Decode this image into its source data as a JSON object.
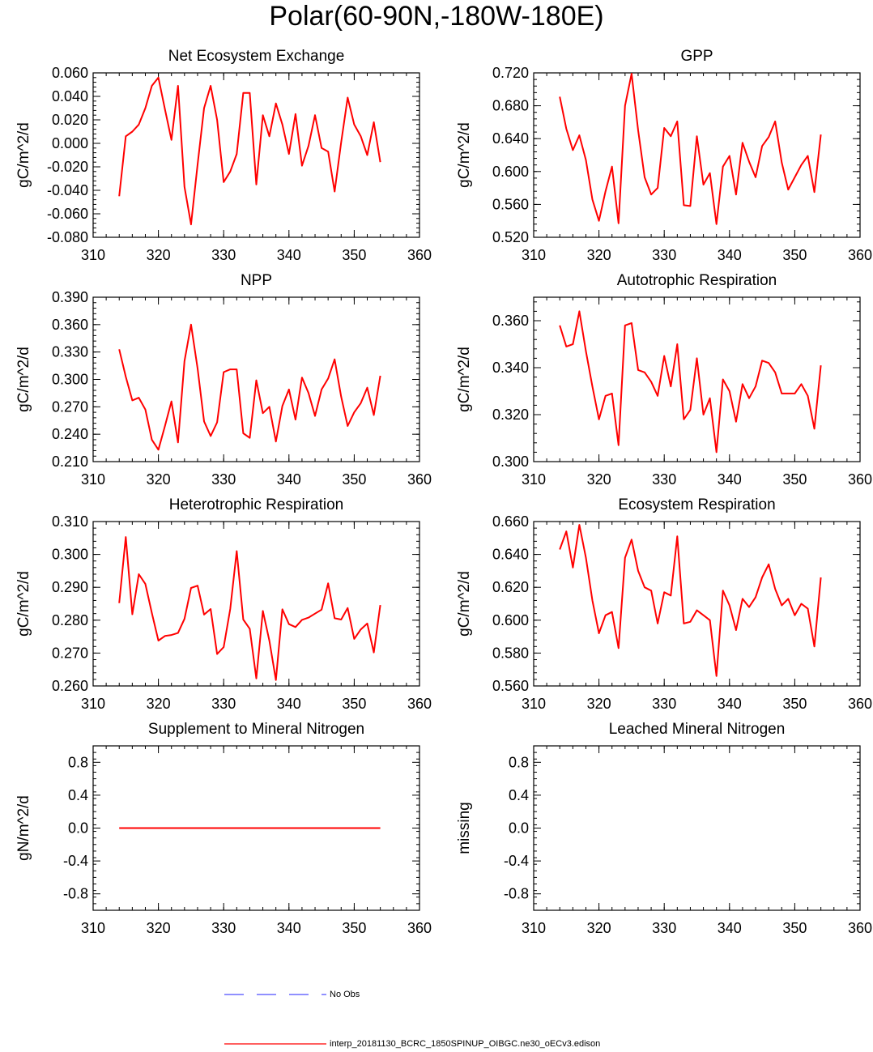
{
  "page_title": "Polar(60-90N,-180W-180E)",
  "colors": {
    "model_line": "#ff0000",
    "obs_line": "#4d4dff",
    "axis": "#000000"
  },
  "legend": {
    "obs_label": "No Obs",
    "model_label": "interp_20181130_BCRC_1850SPINUP_OIBGC.ne30_oECv3.edison"
  },
  "chart_data": [
    {
      "type": "line",
      "title": "Net Ecosystem Exchange",
      "ylabel": "gC/m^2/d",
      "xlim": [
        310,
        360
      ],
      "ylim": [
        -0.08,
        0.06
      ],
      "xticks": [
        310,
        320,
        330,
        340,
        350,
        360
      ],
      "yticks": [
        -0.08,
        -0.06,
        -0.04,
        -0.02,
        0.0,
        0.02,
        0.04,
        0.06
      ],
      "ytick_labels": [
        "-0.080",
        "-0.060",
        "-0.040",
        "-0.020",
        "0.000",
        "0.020",
        "0.040",
        "0.060"
      ],
      "series": [
        {
          "name": "interp_20181130_BCRC_1850SPINUP_OIBGC.ne30_oECv3.edison",
          "x": [
            314,
            315,
            316,
            317,
            318,
            319,
            320,
            321,
            322,
            323,
            324,
            325,
            326,
            327,
            328,
            329,
            330,
            331,
            332,
            333,
            334,
            335,
            336,
            337,
            338,
            339,
            340,
            341,
            342,
            343,
            344,
            345,
            346,
            347,
            348,
            349,
            350,
            351,
            352,
            353,
            354
          ],
          "values": [
            -0.045,
            0.006,
            0.01,
            0.016,
            0.03,
            0.049,
            0.056,
            0.029,
            0.003,
            0.049,
            -0.037,
            -0.069,
            -0.018,
            0.03,
            0.049,
            0.02,
            -0.033,
            -0.024,
            -0.009,
            0.043,
            0.043,
            -0.035,
            0.024,
            0.006,
            0.034,
            0.016,
            -0.009,
            0.025,
            -0.019,
            -0.002,
            0.024,
            -0.004,
            -0.007,
            -0.041,
            0.001,
            0.039,
            0.016,
            0.006,
            -0.01,
            0.018,
            -0.016
          ]
        }
      ]
    },
    {
      "type": "line",
      "title": "GPP",
      "ylabel": "gC/m^2/d",
      "xlim": [
        310,
        360
      ],
      "ylim": [
        0.52,
        0.72
      ],
      "xticks": [
        310,
        320,
        330,
        340,
        350,
        360
      ],
      "yticks": [
        0.52,
        0.56,
        0.6,
        0.64,
        0.68,
        0.72
      ],
      "ytick_labels": [
        "0.520",
        "0.560",
        "0.600",
        "0.640",
        "0.680",
        "0.720"
      ],
      "series": [
        {
          "name": "interp_20181130_BCRC_1850SPINUP_OIBGC.ne30_oECv3.edison",
          "x": [
            314,
            315,
            316,
            317,
            318,
            319,
            320,
            321,
            322,
            323,
            324,
            325,
            326,
            327,
            328,
            329,
            330,
            331,
            332,
            333,
            334,
            335,
            336,
            337,
            338,
            339,
            340,
            341,
            342,
            343,
            344,
            345,
            346,
            347,
            348,
            349,
            350,
            351,
            352,
            353,
            354
          ],
          "values": [
            0.691,
            0.652,
            0.626,
            0.644,
            0.614,
            0.566,
            0.54,
            0.576,
            0.606,
            0.537,
            0.68,
            0.719,
            0.65,
            0.593,
            0.572,
            0.58,
            0.653,
            0.643,
            0.661,
            0.559,
            0.558,
            0.643,
            0.584,
            0.598,
            0.536,
            0.606,
            0.619,
            0.572,
            0.635,
            0.612,
            0.593,
            0.631,
            0.642,
            0.661,
            0.611,
            0.578,
            0.593,
            0.608,
            0.619,
            0.575,
            0.645
          ]
        }
      ]
    },
    {
      "type": "line",
      "title": "NPP",
      "ylabel": "gC/m^2/d",
      "xlim": [
        310,
        360
      ],
      "ylim": [
        0.21,
        0.39
      ],
      "xticks": [
        310,
        320,
        330,
        340,
        350,
        360
      ],
      "yticks": [
        0.21,
        0.24,
        0.27,
        0.3,
        0.33,
        0.36,
        0.39
      ],
      "ytick_labels": [
        "0.210",
        "0.240",
        "0.270",
        "0.300",
        "0.330",
        "0.360",
        "0.390"
      ],
      "series": [
        {
          "name": "interp_20181130_BCRC_1850SPINUP_OIBGC.ne30_oECv3.edison",
          "x": [
            314,
            315,
            316,
            317,
            318,
            319,
            320,
            321,
            322,
            323,
            324,
            325,
            326,
            327,
            328,
            329,
            330,
            331,
            332,
            333,
            334,
            335,
            336,
            337,
            338,
            339,
            340,
            341,
            342,
            343,
            344,
            345,
            346,
            347,
            348,
            349,
            350,
            351,
            352,
            353,
            354
          ],
          "values": [
            0.333,
            0.303,
            0.277,
            0.28,
            0.267,
            0.234,
            0.223,
            0.249,
            0.276,
            0.231,
            0.32,
            0.36,
            0.312,
            0.254,
            0.238,
            0.253,
            0.308,
            0.311,
            0.311,
            0.241,
            0.236,
            0.299,
            0.263,
            0.27,
            0.232,
            0.271,
            0.289,
            0.256,
            0.302,
            0.285,
            0.26,
            0.289,
            0.301,
            0.322,
            0.281,
            0.249,
            0.264,
            0.274,
            0.291,
            0.261,
            0.304
          ]
        }
      ]
    },
    {
      "type": "line",
      "title": "Autotrophic Respiration",
      "ylabel": "gC/m^2/d",
      "xlim": [
        310,
        360
      ],
      "ylim": [
        0.3,
        0.37
      ],
      "xticks": [
        310,
        320,
        330,
        340,
        350,
        360
      ],
      "yticks": [
        0.3,
        0.32,
        0.34,
        0.36
      ],
      "ytick_labels": [
        "0.300",
        "0.320",
        "0.340",
        "0.360"
      ],
      "series": [
        {
          "name": "interp_20181130_BCRC_1850SPINUP_OIBGC.ne30_oECv3.edison",
          "x": [
            314,
            315,
            316,
            317,
            318,
            319,
            320,
            321,
            322,
            323,
            324,
            325,
            326,
            327,
            328,
            329,
            330,
            331,
            332,
            333,
            334,
            335,
            336,
            337,
            338,
            339,
            340,
            341,
            342,
            343,
            344,
            345,
            346,
            347,
            348,
            349,
            350,
            351,
            352,
            353,
            354
          ],
          "values": [
            0.358,
            0.349,
            0.35,
            0.364,
            0.347,
            0.332,
            0.318,
            0.328,
            0.329,
            0.307,
            0.358,
            0.359,
            0.339,
            0.338,
            0.334,
            0.328,
            0.345,
            0.332,
            0.35,
            0.318,
            0.322,
            0.344,
            0.32,
            0.327,
            0.304,
            0.335,
            0.33,
            0.317,
            0.333,
            0.327,
            0.332,
            0.343,
            0.342,
            0.338,
            0.329,
            0.329,
            0.329,
            0.333,
            0.328,
            0.314,
            0.341
          ]
        }
      ]
    },
    {
      "type": "line",
      "title": "Heterotrophic Respiration",
      "ylabel": "gC/m^2/d",
      "xlim": [
        310,
        360
      ],
      "ylim": [
        0.26,
        0.31
      ],
      "xticks": [
        310,
        320,
        330,
        340,
        350,
        360
      ],
      "yticks": [
        0.26,
        0.27,
        0.28,
        0.29,
        0.3,
        0.31
      ],
      "ytick_labels": [
        "0.260",
        "0.270",
        "0.280",
        "0.290",
        "0.300",
        "0.310"
      ],
      "series": [
        {
          "name": "interp_20181130_BCRC_1850SPINUP_OIBGC.ne30_oECv3.edison",
          "x": [
            314,
            315,
            316,
            317,
            318,
            319,
            320,
            321,
            322,
            323,
            324,
            325,
            326,
            327,
            328,
            329,
            330,
            331,
            332,
            333,
            334,
            335,
            336,
            337,
            338,
            339,
            340,
            341,
            342,
            343,
            344,
            345,
            346,
            347,
            348,
            349,
            350,
            351,
            352,
            353,
            354
          ],
          "values": [
            0.2852,
            0.3053,
            0.2818,
            0.294,
            0.291,
            0.2822,
            0.2738,
            0.2752,
            0.2755,
            0.2761,
            0.2804,
            0.2898,
            0.2905,
            0.2817,
            0.2834,
            0.2697,
            0.2718,
            0.2834,
            0.301,
            0.2802,
            0.2774,
            0.2623,
            0.2828,
            0.2738,
            0.2618,
            0.2833,
            0.2788,
            0.2779,
            0.2801,
            0.2808,
            0.282,
            0.2832,
            0.2912,
            0.2806,
            0.2802,
            0.2837,
            0.2743,
            0.2772,
            0.279,
            0.2702,
            0.2846
          ]
        }
      ]
    },
    {
      "type": "line",
      "title": "Ecosystem Respiration",
      "ylabel": "gC/m^2/d",
      "xlim": [
        310,
        360
      ],
      "ylim": [
        0.56,
        0.66
      ],
      "xticks": [
        310,
        320,
        330,
        340,
        350,
        360
      ],
      "yticks": [
        0.56,
        0.58,
        0.6,
        0.62,
        0.64,
        0.66
      ],
      "ytick_labels": [
        "0.560",
        "0.580",
        "0.600",
        "0.620",
        "0.640",
        "0.660"
      ],
      "series": [
        {
          "name": "interp_20181130_BCRC_1850SPINUP_OIBGC.ne30_oECv3.edison",
          "x": [
            314,
            315,
            316,
            317,
            318,
            319,
            320,
            321,
            322,
            323,
            324,
            325,
            326,
            327,
            328,
            329,
            330,
            331,
            332,
            333,
            334,
            335,
            336,
            337,
            338,
            339,
            340,
            341,
            342,
            343,
            344,
            345,
            346,
            347,
            348,
            349,
            350,
            351,
            352,
            353,
            354
          ],
          "values": [
            0.643,
            0.654,
            0.632,
            0.658,
            0.638,
            0.612,
            0.592,
            0.603,
            0.605,
            0.583,
            0.638,
            0.649,
            0.63,
            0.62,
            0.618,
            0.598,
            0.617,
            0.615,
            0.651,
            0.598,
            0.599,
            0.606,
            0.603,
            0.6,
            0.566,
            0.618,
            0.609,
            0.594,
            0.613,
            0.608,
            0.614,
            0.626,
            0.634,
            0.619,
            0.609,
            0.613,
            0.603,
            0.61,
            0.607,
            0.584,
            0.626
          ]
        }
      ]
    },
    {
      "type": "line",
      "title": "Supplement to Mineral Nitrogen",
      "ylabel": "gN/m^2/d",
      "xlim": [
        310,
        360
      ],
      "ylim": [
        -1.0,
        1.0
      ],
      "xticks": [
        310,
        320,
        330,
        340,
        350,
        360
      ],
      "yticks": [
        -0.8,
        -0.4,
        0.0,
        0.4,
        0.8
      ],
      "ytick_labels": [
        "-0.8",
        "-0.4",
        "0.0",
        "0.4",
        "0.8"
      ],
      "series": [
        {
          "name": "interp_20181130_BCRC_1850SPINUP_OIBGC.ne30_oECv3.edison",
          "x": [
            314,
            354
          ],
          "values": [
            0.0,
            0.0
          ]
        }
      ]
    },
    {
      "type": "line",
      "title": "Leached Mineral Nitrogen",
      "ylabel": "missing",
      "xlim": [
        310,
        360
      ],
      "ylim": [
        -1.0,
        1.0
      ],
      "xticks": [
        310,
        320,
        330,
        340,
        350,
        360
      ],
      "yticks": [
        -0.8,
        -0.4,
        0.0,
        0.4,
        0.8
      ],
      "ytick_labels": [
        "-0.8",
        "-0.4",
        "0.0",
        "0.4",
        "0.8"
      ],
      "series": []
    }
  ]
}
